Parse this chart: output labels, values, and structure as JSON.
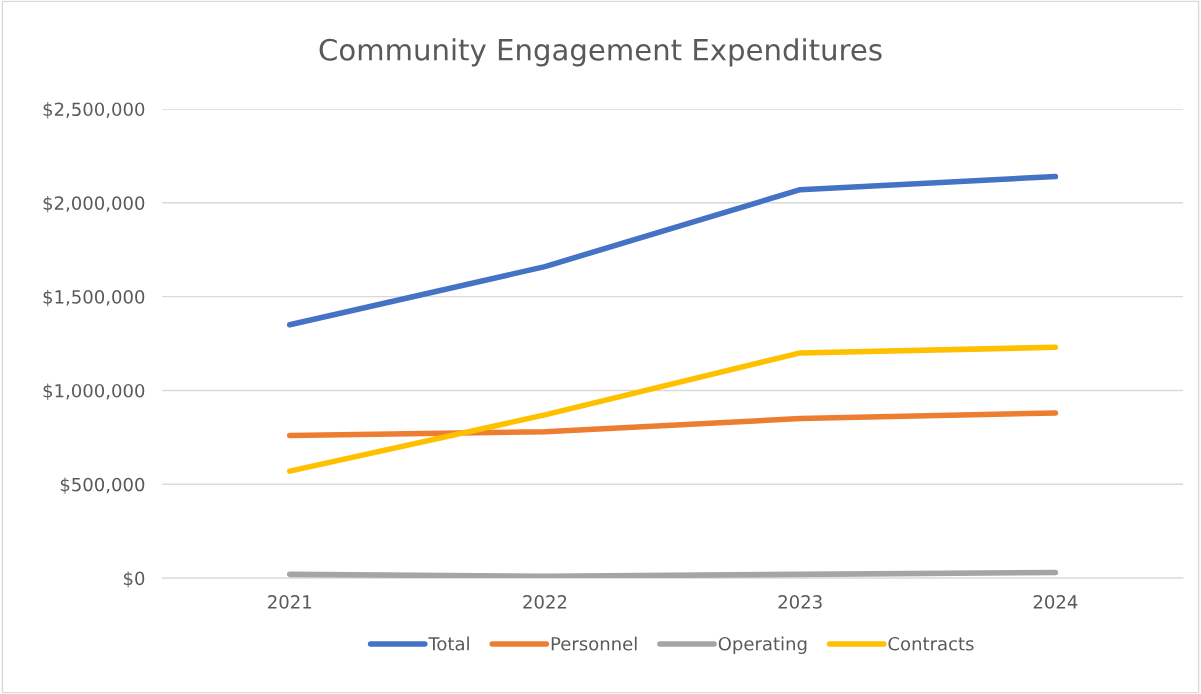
{
  "chart_data": {
    "type": "line",
    "title": "Community Engagement Expenditures",
    "categories": [
      "2021",
      "2022",
      "2023",
      "2024"
    ],
    "series": [
      {
        "name": "Total",
        "color": "#4472c4",
        "values": [
          1350000,
          1660000,
          2070000,
          2140000
        ]
      },
      {
        "name": "Personnel",
        "color": "#ed7d31",
        "values": [
          760000,
          780000,
          850000,
          880000
        ]
      },
      {
        "name": "Operating",
        "color": "#a5a5a5",
        "values": [
          20000,
          10000,
          20000,
          30000
        ]
      },
      {
        "name": "Contracts",
        "color": "#ffc000",
        "values": [
          570000,
          870000,
          1200000,
          1230000
        ]
      }
    ],
    "ylim": [
      0,
      2500000
    ],
    "yticks": [
      {
        "value": 0,
        "label": "$0"
      },
      {
        "value": 500000,
        "label": "$500,000"
      },
      {
        "value": 1000000,
        "label": "$1,000,000"
      },
      {
        "value": 1500000,
        "label": "$1,500,000"
      },
      {
        "value": 2000000,
        "label": "$2,000,000"
      },
      {
        "value": 2500000,
        "label": "$2,500,000"
      }
    ],
    "grid": "y",
    "legend": "bottom",
    "marker": "none",
    "line_style": "solid"
  }
}
